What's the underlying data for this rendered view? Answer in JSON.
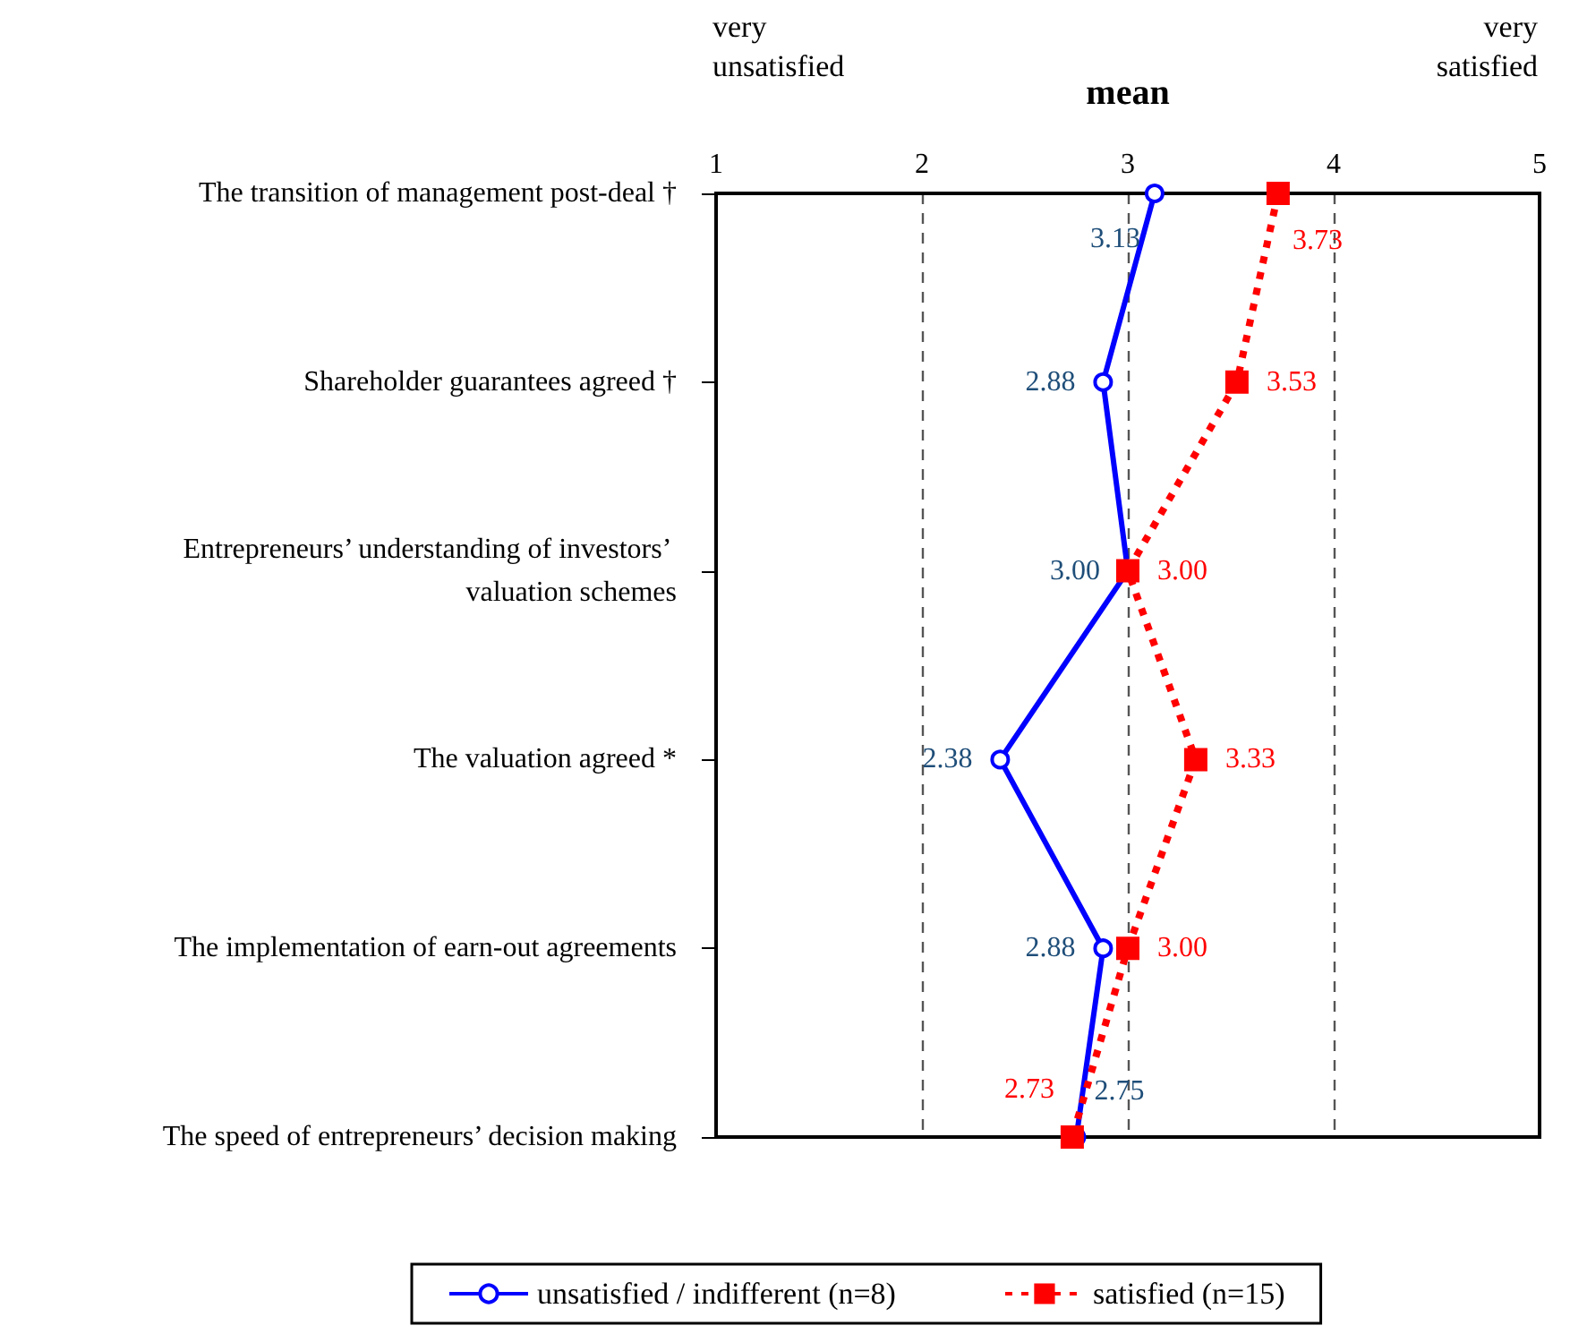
{
  "chart_data": {
    "type": "line",
    "orientation": "horizontal",
    "xlabel": "mean",
    "annotations": [
      "very\nunsatisfied",
      "very\nsatisfied"
    ],
    "categories": [
      "The transition of management post-deal †",
      "Shareholder guarantees agreed †",
      "Entrepreneurs’ understanding of investors’ valuation schemes",
      "The valuation agreed *",
      "The implementation of earn-out agreements",
      "The speed of entrepreneurs’ decision making"
    ],
    "series": [
      {
        "name": "unsatisfied / indifferent (n=8)",
        "color": "#0000ff",
        "marker": "circle",
        "line_style": "solid",
        "values": [
          3.13,
          2.88,
          3.0,
          2.38,
          2.88,
          2.75
        ],
        "value_labels": [
          "3.13",
          "2.88",
          "3.00",
          "2.38",
          "2.88",
          "2.75"
        ]
      },
      {
        "name": "satisfied (n=15)",
        "color": "#ff0000",
        "marker": "square",
        "line_style": "dashed",
        "values": [
          3.73,
          3.53,
          3.0,
          3.33,
          3.0,
          2.73
        ],
        "value_labels": [
          "3.73",
          "3.53",
          "3.00",
          "3.33",
          "3.00",
          "2.73"
        ]
      }
    ],
    "xlim": [
      1,
      5
    ],
    "xticks": [
      1,
      2,
      3,
      4,
      5
    ],
    "grid": "x",
    "legend": "bottom"
  }
}
